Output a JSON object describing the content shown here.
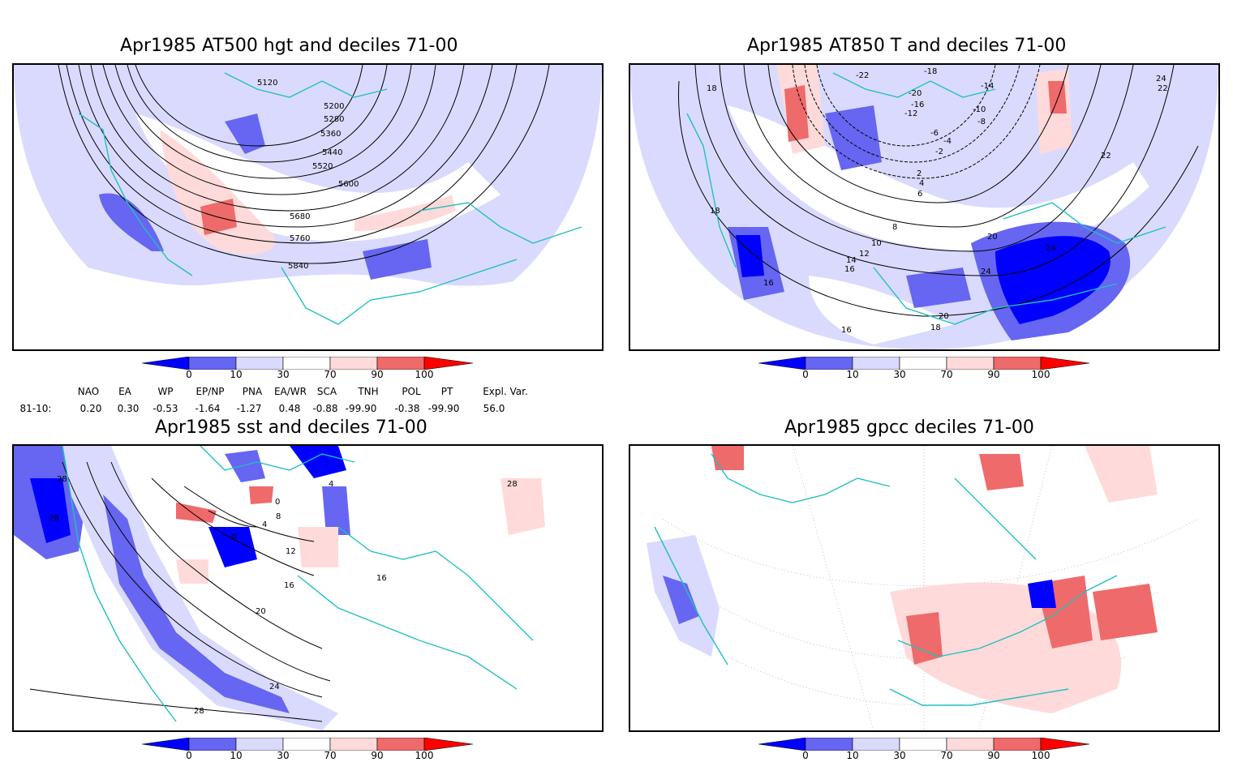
{
  "panels": [
    {
      "id": "hgt",
      "title": "Apr1985 AT500 hgt and deciles 71-00",
      "contour_labels": [
        "5120",
        "5200",
        "5280",
        "5360",
        "5440",
        "5520",
        "5600",
        "5680",
        "5760",
        "5840"
      ]
    },
    {
      "id": "t850",
      "title": "Apr1985 AT850 T and deciles 71-00",
      "contour_labels": [
        "-22",
        "-20",
        "-18",
        "-16",
        "-14",
        "-12",
        "-10",
        "-8",
        "-6",
        "-4",
        "-2",
        "2",
        "4",
        "6",
        "8",
        "10",
        "12",
        "14",
        "16",
        "16",
        "16",
        "18",
        "18",
        "18",
        "20",
        "20",
        "22",
        "22",
        "24",
        "24",
        "24"
      ]
    },
    {
      "id": "sst",
      "title": "Apr1985 sst and deciles 71-00",
      "contour_labels": [
        "28",
        "28",
        "0",
        "4",
        "8",
        "12",
        "16",
        "16",
        "20",
        "24",
        "28",
        "28",
        "0",
        "4"
      ]
    },
    {
      "id": "gpcc",
      "title": "Apr1985 gpcc deciles 71-00",
      "contour_labels": []
    }
  ],
  "colorbar": {
    "ticks": [
      "0",
      "10",
      "30",
      "70",
      "90",
      "100"
    ],
    "colors": [
      "#0000ff",
      "#6666f2",
      "#dadaff",
      "#ffffff",
      "#ffdada",
      "#ef6a6a",
      "#ff0000"
    ]
  },
  "indices": {
    "headers": [
      "NAO",
      "EA",
      "WP",
      "EP/NP",
      "PNA",
      "EA/WR",
      "SCA",
      "TNH",
      "POL",
      "PT",
      "Expl. Var."
    ],
    "row_label": "81-10:",
    "values": [
      "0.20",
      "0.30",
      "-0.53",
      "-1.64",
      "-1.27",
      "0.48",
      "-0.88",
      "-99.90",
      "-0.38",
      "-99.90",
      "56.0"
    ]
  }
}
